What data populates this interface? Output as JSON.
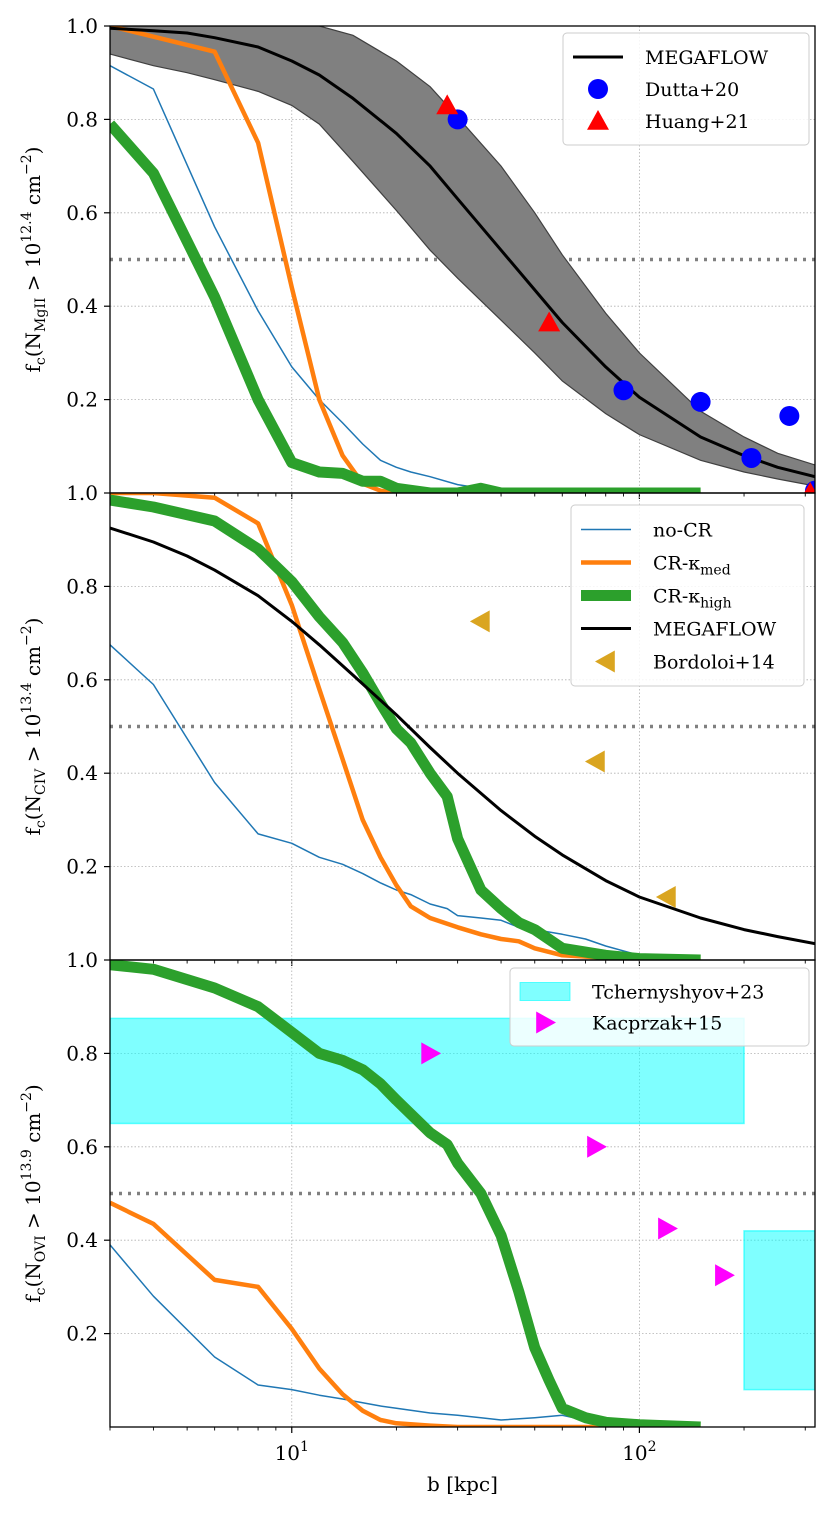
{
  "chart_data": [
    {
      "type": "line",
      "panel": "MgII",
      "ylabel": {
        "base": "f",
        "sub1": "c",
        "open": "(N",
        "sub2": "MgII",
        "gt": " > 10",
        "sup": "12.4",
        "close": " cm",
        "sup2": "−2",
        "end": ")"
      },
      "xlabel": "",
      "xscale": "log",
      "xlim": [
        3,
        320
      ],
      "ylim": [
        0,
        1.0
      ],
      "yticks": [
        0.2,
        0.4,
        0.6,
        0.8,
        1.0
      ],
      "ytick_labels": [
        "0.2",
        "0.4",
        "0.6",
        "0.8",
        "1.0"
      ],
      "reference_line": 0.5,
      "series": [
        {
          "name": "no-CR",
          "color": "#1f77b4",
          "width": 1.5,
          "x": [
            3,
            4,
            6,
            8,
            10,
            12,
            14,
            16,
            18,
            20,
            22,
            25,
            30,
            35,
            40,
            50,
            60,
            80,
            100,
            150
          ],
          "y": [
            0.915,
            0.865,
            0.57,
            0.39,
            0.27,
            0.2,
            0.15,
            0.105,
            0.07,
            0.055,
            0.045,
            0.035,
            0.018,
            0.01,
            0.005,
            0.003,
            0.002,
            0.001,
            0.0,
            0.0
          ]
        },
        {
          "name": "CR-κmed",
          "color": "#ff7f0e",
          "width": 4.5,
          "x": [
            3,
            6,
            8,
            10,
            12,
            14,
            16,
            18,
            20,
            25,
            30,
            40,
            60,
            100,
            150
          ],
          "y": [
            1.0,
            0.945,
            0.75,
            0.44,
            0.2,
            0.08,
            0.02,
            0.005,
            0.0,
            0.0,
            0.0,
            0.0,
            0.0,
            0.0,
            0.0
          ]
        },
        {
          "name": "CR-κhigh",
          "color": "#2ca02c",
          "width": 11,
          "x": [
            3,
            4,
            6,
            8,
            10,
            12,
            14,
            16,
            18,
            20,
            25,
            30,
            35,
            40,
            50,
            60,
            80,
            100,
            150
          ],
          "y": [
            0.79,
            0.685,
            0.42,
            0.2,
            0.065,
            0.045,
            0.042,
            0.025,
            0.025,
            0.01,
            0.0,
            0.0,
            0.01,
            0.0,
            0.0,
            0.0,
            0.0,
            0.0,
            0.0
          ]
        },
        {
          "name": "MEGAFLOW",
          "color": "#000000",
          "width": 3,
          "x": [
            3,
            4,
            5,
            6,
            8,
            10,
            12,
            15,
            20,
            25,
            30,
            40,
            50,
            60,
            80,
            100,
            150,
            200,
            250,
            320
          ],
          "y": [
            0.995,
            0.99,
            0.985,
            0.975,
            0.955,
            0.925,
            0.895,
            0.845,
            0.77,
            0.7,
            0.63,
            0.52,
            0.435,
            0.365,
            0.27,
            0.205,
            0.12,
            0.08,
            0.055,
            0.035
          ]
        }
      ],
      "band": {
        "name": "MEGAFLOW range",
        "color": "#808080",
        "x": [
          3,
          4,
          5,
          6,
          8,
          10,
          12,
          15,
          20,
          25,
          30,
          40,
          50,
          60,
          80,
          100,
          150,
          200,
          250,
          320
        ],
        "upper": [
          1.0,
          1.0,
          1.0,
          1.0,
          1.0,
          1.0,
          1.0,
          0.98,
          0.925,
          0.87,
          0.805,
          0.7,
          0.6,
          0.51,
          0.385,
          0.3,
          0.175,
          0.12,
          0.085,
          0.06
        ],
        "lower": [
          0.94,
          0.915,
          0.9,
          0.885,
          0.86,
          0.83,
          0.79,
          0.71,
          0.605,
          0.52,
          0.46,
          0.37,
          0.3,
          0.24,
          0.17,
          0.125,
          0.07,
          0.045,
          0.03,
          0.015
        ]
      },
      "points": [
        {
          "name": "Dutta+20",
          "color": "#0000ff",
          "marker": "circle",
          "x": [
            30,
            90,
            150,
            210,
            270,
            320
          ],
          "y": [
            0.8,
            0.22,
            0.195,
            0.075,
            0.165,
            0.005
          ]
        },
        {
          "name": "Huang+21",
          "color": "#ff0000",
          "marker": "triangle-up",
          "x": [
            28,
            55,
            310
          ],
          "y": [
            0.83,
            0.365,
            0.0
          ]
        }
      ],
      "legend": {
        "position": "top-right",
        "entries": [
          {
            "label": "MEGAFLOW",
            "kind": "line",
            "color": "#000000",
            "width": 3
          },
          {
            "label": "Dutta+20",
            "kind": "circle",
            "color": "#0000ff"
          },
          {
            "label": "Huang+21",
            "kind": "triangle-up",
            "color": "#ff0000"
          }
        ]
      }
    },
    {
      "type": "line",
      "panel": "CIV",
      "ylabel": {
        "base": "f",
        "sub1": "c",
        "open": "(N",
        "sub2": "CIV",
        "gt": " > 10",
        "sup": "13.4",
        "close": " cm",
        "sup2": "−2",
        "end": ")"
      },
      "xlabel": "",
      "xscale": "log",
      "xlim": [
        3,
        320
      ],
      "ylim": [
        0,
        1.0
      ],
      "yticks": [
        0.2,
        0.4,
        0.6,
        0.8,
        1.0
      ],
      "ytick_labels": [
        "0.2",
        "0.4",
        "0.6",
        "0.8",
        "1.0"
      ],
      "reference_line": 0.5,
      "series": [
        {
          "name": "no-CR",
          "color": "#1f77b4",
          "width": 1.5,
          "x": [
            3,
            4,
            6,
            8,
            10,
            12,
            14,
            16,
            18,
            20,
            22,
            25,
            28,
            30,
            35,
            40,
            45,
            50,
            60,
            70,
            80,
            100,
            150
          ],
          "y": [
            0.675,
            0.59,
            0.38,
            0.27,
            0.25,
            0.22,
            0.205,
            0.185,
            0.165,
            0.15,
            0.14,
            0.12,
            0.11,
            0.095,
            0.09,
            0.085,
            0.07,
            0.065,
            0.055,
            0.045,
            0.03,
            0.01,
            0.0
          ]
        },
        {
          "name": "CR-κmed",
          "color": "#ff7f0e",
          "width": 4.5,
          "x": [
            3,
            4,
            6,
            8,
            10,
            12,
            14,
            16,
            18,
            20,
            22,
            25,
            30,
            35,
            40,
            45,
            50,
            60,
            80,
            100,
            150
          ],
          "y": [
            1.0,
            1.0,
            0.99,
            0.935,
            0.76,
            0.58,
            0.43,
            0.3,
            0.22,
            0.16,
            0.115,
            0.09,
            0.07,
            0.055,
            0.045,
            0.04,
            0.025,
            0.01,
            0.005,
            0.0,
            0.0
          ]
        },
        {
          "name": "CR-κhigh",
          "color": "#2ca02c",
          "width": 11,
          "x": [
            3,
            4,
            6,
            8,
            10,
            12,
            14,
            16,
            18,
            20,
            22,
            25,
            28,
            30,
            35,
            40,
            45,
            50,
            60,
            80,
            100,
            150
          ],
          "y": [
            0.985,
            0.97,
            0.94,
            0.88,
            0.81,
            0.735,
            0.68,
            0.615,
            0.55,
            0.495,
            0.465,
            0.4,
            0.35,
            0.26,
            0.15,
            0.11,
            0.08,
            0.065,
            0.025,
            0.01,
            0.003,
            0.0
          ]
        },
        {
          "name": "MEGAFLOW",
          "color": "#000000",
          "width": 3,
          "x": [
            3,
            4,
            5,
            6,
            8,
            10,
            12,
            15,
            20,
            25,
            30,
            40,
            50,
            60,
            80,
            100,
            150,
            200,
            250,
            320
          ],
          "y": [
            0.925,
            0.895,
            0.865,
            0.835,
            0.78,
            0.725,
            0.675,
            0.61,
            0.525,
            0.455,
            0.4,
            0.32,
            0.265,
            0.225,
            0.17,
            0.135,
            0.09,
            0.065,
            0.05,
            0.035
          ]
        }
      ],
      "points": [
        {
          "name": "Bordoloi+14",
          "color": "#daa520",
          "marker": "triangle-left",
          "x": [
            35,
            75,
            120
          ],
          "y": [
            0.725,
            0.425,
            0.135
          ]
        }
      ],
      "legend": {
        "position": "top-right",
        "entries": [
          {
            "label": "no-CR",
            "kind": "line",
            "color": "#1f77b4",
            "width": 1.5
          },
          {
            "label": "CR-κ",
            "sub": "med",
            "kind": "line",
            "color": "#ff7f0e",
            "width": 4.5
          },
          {
            "label": "CR-κ",
            "sub": "high",
            "kind": "line",
            "color": "#2ca02c",
            "width": 11
          },
          {
            "label": "MEGAFLOW",
            "kind": "line",
            "color": "#000000",
            "width": 3
          },
          {
            "label": "Bordoloi+14",
            "kind": "triangle-left",
            "color": "#daa520"
          }
        ]
      }
    },
    {
      "type": "line",
      "panel": "OVI",
      "ylabel": {
        "base": "f",
        "sub1": "c",
        "open": "(N",
        "sub2": "OVI",
        "gt": " > 10",
        "sup": "13.9",
        "close": " cm",
        "sup2": "−2",
        "end": ")"
      },
      "xlabel": "b [kpc]",
      "xscale": "log",
      "xlim": [
        3,
        320
      ],
      "ylim": [
        0,
        1.0
      ],
      "yticks": [
        0.2,
        0.4,
        0.6,
        0.8,
        1.0
      ],
      "ytick_labels": [
        "0.2",
        "0.4",
        "0.6",
        "0.8",
        "1.0"
      ],
      "xticks": [
        10,
        100
      ],
      "xtick_labels": [
        {
          "base": "10",
          "sup": "1"
        },
        {
          "base": "10",
          "sup": "2"
        }
      ],
      "reference_line": 0.5,
      "series": [
        {
          "name": "no-CR",
          "color": "#1f77b4",
          "width": 1.5,
          "x": [
            3,
            4,
            6,
            8,
            10,
            12,
            14,
            16,
            18,
            20,
            25,
            30,
            35,
            40,
            50,
            60,
            80,
            100,
            150
          ],
          "y": [
            0.39,
            0.28,
            0.15,
            0.09,
            0.08,
            0.068,
            0.06,
            0.052,
            0.045,
            0.04,
            0.03,
            0.025,
            0.02,
            0.015,
            0.02,
            0.025,
            0.005,
            0.0,
            0.0
          ]
        },
        {
          "name": "CR-κmed",
          "color": "#ff7f0e",
          "width": 4.5,
          "x": [
            3,
            4,
            6,
            8,
            10,
            12,
            14,
            16,
            18,
            20,
            25,
            30,
            40,
            60,
            100,
            150
          ],
          "y": [
            0.48,
            0.435,
            0.315,
            0.3,
            0.21,
            0.125,
            0.07,
            0.035,
            0.015,
            0.008,
            0.003,
            0.0,
            0.0,
            0.0,
            0.0,
            0.0
          ]
        },
        {
          "name": "CR-κhigh",
          "color": "#2ca02c",
          "width": 11,
          "x": [
            3,
            4,
            6,
            8,
            10,
            12,
            14,
            16,
            18,
            20,
            22,
            25,
            28,
            30,
            35,
            40,
            45,
            50,
            55,
            60,
            70,
            80,
            100,
            150
          ],
          "y": [
            0.99,
            0.98,
            0.94,
            0.9,
            0.845,
            0.8,
            0.785,
            0.765,
            0.735,
            0.7,
            0.67,
            0.63,
            0.605,
            0.565,
            0.5,
            0.41,
            0.29,
            0.17,
            0.1,
            0.04,
            0.02,
            0.01,
            0.005,
            0.0
          ]
        }
      ],
      "bands": [
        {
          "name": "Tchernyshyov+23",
          "color": "#00ffff",
          "x_range": [
            3,
            200
          ],
          "y_range": [
            0.65,
            0.875
          ]
        },
        {
          "name": "Tchernyshyov+23",
          "color": "#00ffff",
          "x_range": [
            200,
            320
          ],
          "y_range": [
            0.08,
            0.42
          ]
        }
      ],
      "points": [
        {
          "name": "Kacprzak+15",
          "color": "#ff00ff",
          "marker": "triangle-right",
          "x": [
            25,
            75,
            120,
            175
          ],
          "y": [
            0.8,
            0.6,
            0.425,
            0.325
          ]
        }
      ],
      "legend": {
        "position": "top-right",
        "entries": [
          {
            "label": "Tchernyshyov+23",
            "kind": "patch",
            "color": "#00ffff"
          },
          {
            "label": "Kacprzak+15",
            "kind": "triangle-right",
            "color": "#ff00ff"
          }
        ]
      }
    }
  ]
}
